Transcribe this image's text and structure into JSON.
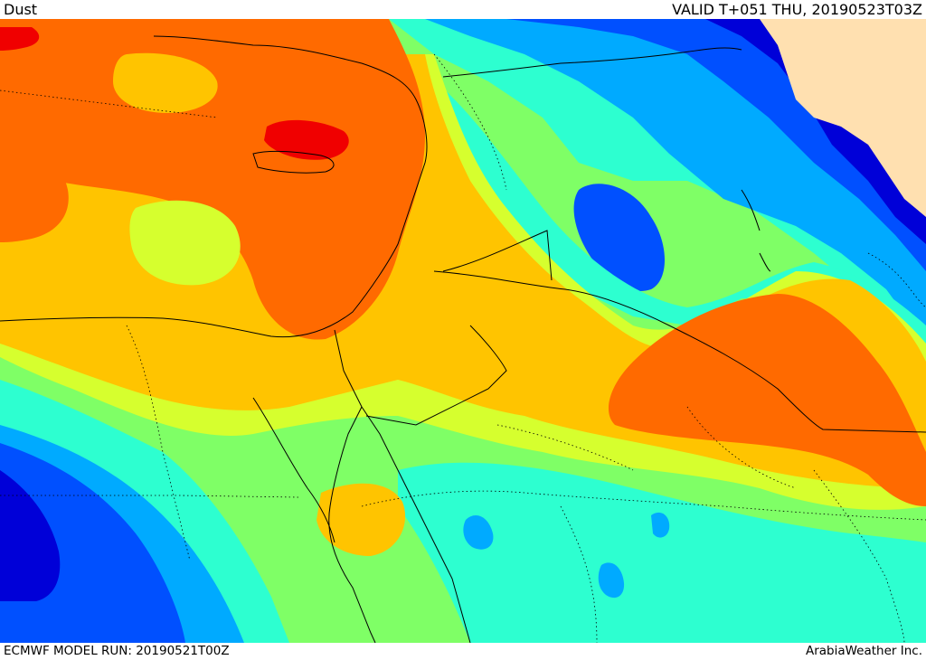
{
  "header": {
    "title": "Dust",
    "valid_time": "VALID T+051 THU, 20190523T03Z"
  },
  "footer": {
    "model_run": "ECMWF MODEL RUN: 20190521T00Z",
    "credit": "ArabiaWeather Inc."
  },
  "legend_colors": {
    "extreme": "#f00000",
    "very_high": "#ff6a00",
    "high": "#ffc400",
    "elevated": "#d6ff2e",
    "moderate": "#7fff66",
    "low_moderate": "#2dffd0",
    "low": "#00aaff",
    "very_low": "#0050ff",
    "minimal": "#0000d8",
    "masked_land": "#ffe0b0"
  }
}
